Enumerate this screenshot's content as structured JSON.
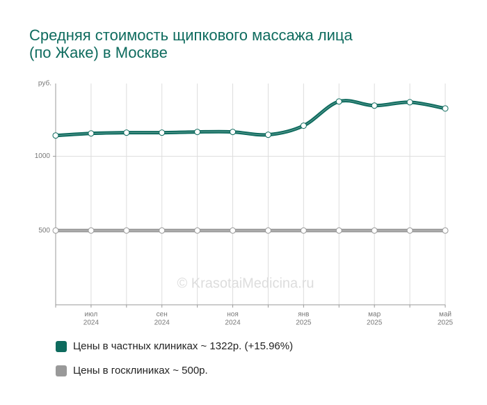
{
  "chart_data": {
    "type": "line",
    "title_lines": [
      "Средняя стоимость щипкового массажа лица",
      "(по Жаке) в Москве"
    ],
    "y_label": "руб.",
    "watermark": "© KrasotaiMedicina.ru",
    "categories": [
      null,
      "июл",
      null,
      "сен",
      null,
      "ноя",
      null,
      "янв",
      null,
      "мар",
      null,
      "май"
    ],
    "category_years": [
      null,
      "2024",
      null,
      "2024",
      null,
      "2024",
      null,
      "2025",
      null,
      "2025",
      null,
      "2025"
    ],
    "series": [
      {
        "name": "Цены в частных клиниках ~ 1322р. (+15.96%)",
        "color": "#0e6b5e",
        "values": [
          1140,
          1154,
          1159,
          1159,
          1164,
          1164,
          1145,
          1206,
          1369,
          1341,
          1364,
          1322
        ]
      },
      {
        "name": "Цены в госклиниках ~ 500р.",
        "color": "#999999",
        "values": [
          500,
          500,
          500,
          500,
          500,
          500,
          500,
          500,
          500,
          500,
          500,
          500
        ]
      }
    ],
    "ylim": [
      0,
      1490
    ],
    "yticks": [
      500,
      1000
    ],
    "grid": true
  }
}
